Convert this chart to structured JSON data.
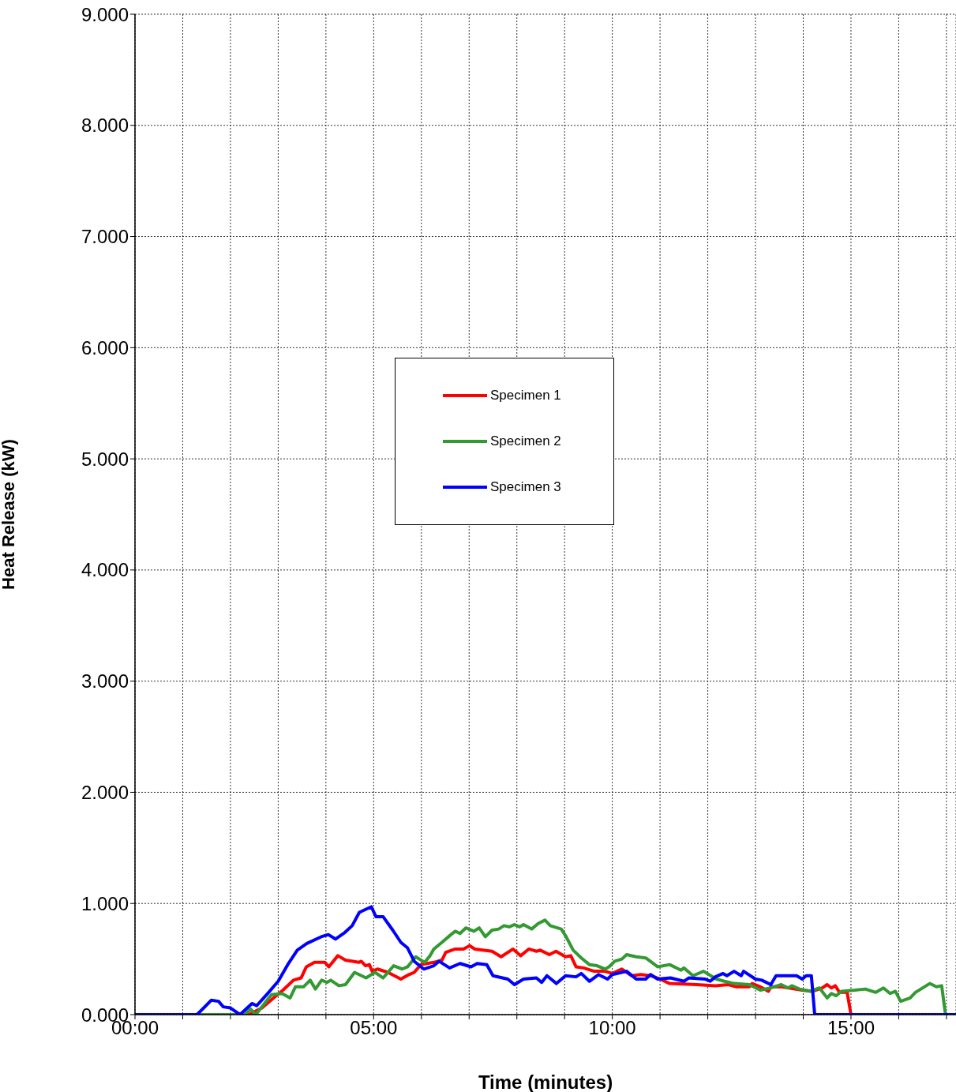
{
  "chart_data": {
    "type": "line",
    "xlabel": "Time (minutes)",
    "ylabel": "Heat Release (kW)",
    "xlim": [
      0,
      17.2
    ],
    "xticks": [
      {
        "value": 0,
        "label": "00:00"
      },
      {
        "value": 1,
        "label": null
      },
      {
        "value": 2,
        "label": null
      },
      {
        "value": 3,
        "label": null
      },
      {
        "value": 4,
        "label": null
      },
      {
        "value": 5,
        "label": "05:00"
      },
      {
        "value": 6,
        "label": null
      },
      {
        "value": 7,
        "label": null
      },
      {
        "value": 8,
        "label": null
      },
      {
        "value": 9,
        "label": null
      },
      {
        "value": 10,
        "label": "10:00"
      },
      {
        "value": 11,
        "label": null
      },
      {
        "value": 12,
        "label": null
      },
      {
        "value": 13,
        "label": null
      },
      {
        "value": 14,
        "label": null
      },
      {
        "value": 15,
        "label": "15:00"
      },
      {
        "value": 16,
        "label": null
      },
      {
        "value": 17,
        "label": null
      }
    ],
    "ylim": [
      0,
      9
    ],
    "yticks": [
      {
        "value": 0,
        "label": "0.000"
      },
      {
        "value": 1,
        "label": "1.000"
      },
      {
        "value": 2,
        "label": "2.000"
      },
      {
        "value": 3,
        "label": "3.000"
      },
      {
        "value": 4,
        "label": "4.000"
      },
      {
        "value": 5,
        "label": "5.000"
      },
      {
        "value": 6,
        "label": "6.000"
      },
      {
        "value": 7,
        "label": "7.000"
      },
      {
        "value": 8,
        "label": "8.000"
      },
      {
        "value": 9,
        "label": "9.000"
      }
    ],
    "grid": true,
    "legend": "center",
    "marker": "none",
    "line_style": "solid",
    "series": [
      {
        "name": "Specimen 1",
        "color": "#ff0000",
        "x": [
          0,
          2.38,
          2.66,
          2.93,
          3.1,
          3.32,
          3.48,
          3.59,
          3.76,
          3.98,
          4.06,
          4.25,
          4.41,
          4.69,
          4.74,
          4.83,
          4.91,
          4.97,
          5.08,
          5.3,
          5.57,
          5.74,
          5.85,
          5.99,
          6.26,
          6.43,
          6.51,
          6.71,
          6.88,
          7.01,
          7.12,
          7.48,
          7.67,
          7.92,
          8.08,
          8.25,
          8.41,
          8.49,
          8.68,
          8.82,
          9.02,
          9.13,
          9.24,
          9.4,
          9.62,
          9.85,
          10.0,
          10.2,
          10.4,
          10.6,
          10.8,
          11.0,
          11.2,
          11.77,
          12.16,
          12.43,
          12.6,
          12.87,
          12.93,
          13.1,
          13.27,
          13.32,
          13.54,
          13.7,
          13.98,
          14.2,
          14.4,
          14.5,
          14.59,
          14.67,
          14.76,
          14.92,
          15.0,
          17.2
        ],
        "values": [
          0,
          0,
          0.06,
          0.16,
          0.22,
          0.31,
          0.33,
          0.43,
          0.47,
          0.47,
          0.43,
          0.53,
          0.49,
          0.47,
          0.48,
          0.44,
          0.45,
          0.39,
          0.41,
          0.38,
          0.32,
          0.36,
          0.38,
          0.45,
          0.47,
          0.49,
          0.56,
          0.59,
          0.59,
          0.62,
          0.59,
          0.57,
          0.52,
          0.59,
          0.53,
          0.59,
          0.57,
          0.58,
          0.54,
          0.57,
          0.52,
          0.53,
          0.43,
          0.42,
          0.39,
          0.39,
          0.37,
          0.41,
          0.35,
          0.36,
          0.35,
          0.32,
          0.28,
          0.27,
          0.26,
          0.27,
          0.25,
          0.25,
          0.28,
          0.25,
          0.21,
          0.25,
          0.25,
          0.24,
          0.22,
          0.21,
          0.24,
          0.27,
          0.24,
          0.26,
          0.2,
          0.2,
          0,
          0
        ]
      },
      {
        "name": "Specimen 2",
        "color": "#339933",
        "x": [
          0,
          2.3,
          2.42,
          2.53,
          2.75,
          2.86,
          3.08,
          3.25,
          3.36,
          3.53,
          3.67,
          3.78,
          3.91,
          4.02,
          4.1,
          4.27,
          4.41,
          4.6,
          4.84,
          5.03,
          5.2,
          5.42,
          5.6,
          5.71,
          5.88,
          6.07,
          6.18,
          6.26,
          6.43,
          6.62,
          6.71,
          6.81,
          6.93,
          7.1,
          7.21,
          7.34,
          7.48,
          7.62,
          7.73,
          7.84,
          7.95,
          8.06,
          8.14,
          8.31,
          8.45,
          8.59,
          8.7,
          8.93,
          9.02,
          9.18,
          9.35,
          9.52,
          9.68,
          9.85,
          9.93,
          10.05,
          10.2,
          10.3,
          10.5,
          10.7,
          10.95,
          11.2,
          11.44,
          11.5,
          11.69,
          11.91,
          12.18,
          12.35,
          12.55,
          12.87,
          13.1,
          13.32,
          13.54,
          13.68,
          13.76,
          13.92,
          14.15,
          14.34,
          14.5,
          14.59,
          14.69,
          14.8,
          15.08,
          15.3,
          15.52,
          15.68,
          15.82,
          15.93,
          16.04,
          16.24,
          16.35,
          16.65,
          16.79,
          16.9,
          16.98,
          17.2
        ],
        "values": [
          0,
          0,
          0.05,
          0,
          0.12,
          0.18,
          0.19,
          0.15,
          0.25,
          0.25,
          0.31,
          0.23,
          0.31,
          0.29,
          0.31,
          0.26,
          0.27,
          0.38,
          0.33,
          0.38,
          0.33,
          0.44,
          0.41,
          0.43,
          0.52,
          0.47,
          0.53,
          0.59,
          0.65,
          0.72,
          0.75,
          0.73,
          0.78,
          0.75,
          0.78,
          0.7,
          0.76,
          0.77,
          0.8,
          0.79,
          0.81,
          0.79,
          0.81,
          0.77,
          0.82,
          0.85,
          0.8,
          0.77,
          0.71,
          0.58,
          0.51,
          0.45,
          0.44,
          0.41,
          0.43,
          0.48,
          0.5,
          0.54,
          0.52,
          0.51,
          0.43,
          0.45,
          0.4,
          0.42,
          0.35,
          0.39,
          0.32,
          0.3,
          0.28,
          0.27,
          0.22,
          0.24,
          0.27,
          0.24,
          0.26,
          0.23,
          0.21,
          0.24,
          0.15,
          0.19,
          0.17,
          0.21,
          0.22,
          0.23,
          0.2,
          0.24,
          0.19,
          0.21,
          0.12,
          0.15,
          0.2,
          0.28,
          0.25,
          0.26,
          0,
          0
        ]
      },
      {
        "name": "Specimen 3",
        "color": "#0000ff",
        "x": [
          0,
          1.3,
          1.6,
          1.75,
          1.85,
          2.0,
          2.2,
          2.45,
          2.55,
          2.8,
          3.0,
          3.2,
          3.4,
          3.6,
          3.9,
          4.05,
          4.2,
          4.4,
          4.55,
          4.7,
          4.85,
          4.95,
          5.05,
          5.2,
          5.4,
          5.57,
          5.71,
          5.85,
          6.05,
          6.26,
          6.37,
          6.59,
          6.81,
          7.04,
          7.17,
          7.37,
          7.5,
          7.81,
          7.95,
          8.14,
          8.41,
          8.52,
          8.63,
          8.83,
          9.02,
          9.24,
          9.35,
          9.52,
          9.71,
          9.9,
          10.0,
          10.3,
          10.5,
          10.7,
          10.8,
          10.95,
          11.22,
          11.5,
          11.6,
          11.94,
          12.05,
          12.16,
          12.32,
          12.4,
          12.55,
          12.7,
          12.75,
          13.0,
          13.13,
          13.32,
          13.43,
          13.7,
          13.86,
          13.98,
          14.06,
          14.17,
          14.24,
          17.2
        ],
        "values": [
          0,
          0,
          0.13,
          0.12,
          0.07,
          0.06,
          0,
          0.1,
          0.08,
          0.2,
          0.3,
          0.45,
          0.58,
          0.64,
          0.7,
          0.72,
          0.68,
          0.74,
          0.8,
          0.92,
          0.95,
          0.97,
          0.88,
          0.88,
          0.76,
          0.65,
          0.6,
          0.48,
          0.41,
          0.44,
          0.48,
          0.42,
          0.46,
          0.43,
          0.46,
          0.45,
          0.35,
          0.32,
          0.27,
          0.32,
          0.33,
          0.29,
          0.35,
          0.28,
          0.35,
          0.34,
          0.37,
          0.3,
          0.36,
          0.32,
          0.36,
          0.39,
          0.32,
          0.32,
          0.36,
          0.32,
          0.33,
          0.3,
          0.33,
          0.32,
          0.3,
          0.34,
          0.37,
          0.35,
          0.39,
          0.35,
          0.39,
          0.32,
          0.31,
          0.27,
          0.35,
          0.35,
          0.35,
          0.32,
          0.35,
          0.35,
          0,
          0
        ]
      }
    ]
  }
}
